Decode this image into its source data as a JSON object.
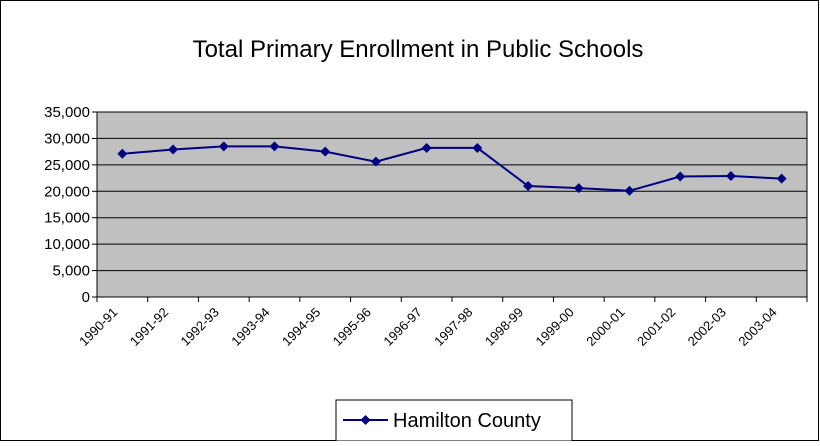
{
  "chart_data": {
    "type": "line",
    "title": "Total Primary Enrollment in Public Schools",
    "xlabel": "",
    "ylabel": "",
    "categories": [
      "1990-91",
      "1991-92",
      "1992-93",
      "1993-94",
      "1994-95",
      "1995-96",
      "1996-97",
      "1997-98",
      "1998-99",
      "1999-00",
      "2000-01",
      "2001-02",
      "2002-03",
      "2003-04"
    ],
    "series": [
      {
        "name": "Hamilton County",
        "values": [
          27100,
          27900,
          28500,
          28500,
          27500,
          25600,
          28200,
          28200,
          21000,
          20600,
          20100,
          22800,
          22900,
          22400
        ]
      }
    ],
    "ylim": [
      0,
      35000
    ],
    "yticks": [
      0,
      5000,
      10000,
      15000,
      20000,
      25000,
      30000,
      35000
    ],
    "ytick_labels": [
      "0",
      "5,000",
      "10,000",
      "15,000",
      "20,000",
      "25,000",
      "30,000",
      "35,000"
    ],
    "grid": true,
    "legend": "bottom",
    "colors": {
      "line": "#000080",
      "plot_background": "#c0c0c0",
      "gridline": "#000000",
      "frame": "#000000"
    }
  }
}
